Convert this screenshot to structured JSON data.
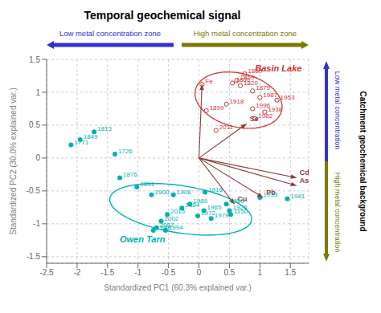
{
  "chart_data": {
    "type": "scatter",
    "title": "Temporal geochemical signal",
    "x_label": "Standardized PC1 (60.3% explained var.)",
    "y_label": "Standardized PC2 (30.0% explained var.)",
    "xlim": [
      -2.5,
      1.8
    ],
    "ylim": [
      -1.6,
      1.5
    ],
    "xticks": [
      -2.5,
      -2,
      -1.5,
      -1,
      -0.5,
      0,
      0.5,
      1,
      1.5
    ],
    "yticks": [
      -1.5,
      -1,
      -0.5,
      0,
      0.5,
      1,
      1.5
    ],
    "grid": true,
    "series": [
      {
        "color": "#cc3333",
        "marker": "open_circle",
        "x": [
          0.05,
          0.75,
          0.62,
          0.55,
          0.68,
          0.88,
          0.12,
          0.45,
          1.0,
          1.28,
          0.88,
          1.08,
          0.92,
          0.28
        ],
        "values": [
          1.12,
          1.28,
          1.18,
          1.14,
          1.1,
          1.02,
          0.72,
          0.82,
          0.92,
          0.88,
          0.75,
          0.7,
          0.6,
          0.42
        ],
        "labels": [
          "Fe",
          "1839",
          "1859",
          "1800",
          "1820",
          "1879",
          "1899",
          "1918",
          "1987",
          "1953",
          "1996",
          "1938",
          "1982",
          "2011"
        ]
      },
      {
        "color": "#00b0b0",
        "marker": "circle",
        "x": [
          -2.1,
          -1.95,
          -1.72,
          -1.38,
          -1.3,
          -1.02,
          -0.78,
          -0.42,
          0.1,
          -0.15,
          -0.28,
          0.08,
          -0.02,
          0.2,
          -0.52,
          -0.62,
          -0.7,
          -0.75,
          -0.55,
          0.45,
          0.5,
          0.52,
          1.0,
          1.45
        ],
        "values": [
          0.2,
          0.28,
          0.4,
          0.06,
          -0.3,
          -0.44,
          -0.56,
          -0.56,
          -0.52,
          -0.7,
          -0.76,
          -0.8,
          -0.88,
          -0.92,
          -0.86,
          -0.96,
          -1.06,
          -1.1,
          -1.1,
          -0.7,
          -0.8,
          -0.86,
          -0.6,
          -0.62
        ],
        "labels": [
          "1771",
          "1849",
          "1813",
          "1726",
          "1876",
          "1891",
          "1900",
          "1908",
          "1916",
          "1989",
          "1984",
          "1965",
          "1972",
          "1979",
          "2015",
          "2002",
          "2007",
          "1998",
          "1994",
          "1959",
          "1926",
          "1150",
          "1933",
          "1941"
        ]
      }
    ],
    "arrows": {
      "color": "#8b3a3a",
      "origin": [
        0.0,
        0.0
      ],
      "x": [
        1.6,
        1.6,
        0.78,
        1.05,
        0.58,
        0.05
      ],
      "values": [
        -0.3,
        -0.42,
        0.52,
        -0.6,
        -0.7,
        1.12
      ],
      "labels": [
        "Cd",
        "As",
        "Se",
        "Pb",
        "Cu",
        null
      ]
    },
    "ellipses": [
      {
        "color": "#cc4444",
        "center_x": 0.65,
        "center_y": 0.88,
        "width": 1.45,
        "height": 0.82,
        "angle": -12
      },
      {
        "color": "#00b0b0",
        "center_x": -0.3,
        "center_y": -0.78,
        "width": 2.35,
        "height": 0.72,
        "angle": -8
      }
    ],
    "annotations": [
      {
        "text": "Basin Lake",
        "x": 0.92,
        "y": 1.32,
        "color": "#cc3333"
      },
      {
        "text": "Owen Tarn",
        "x": -1.3,
        "y": -1.28,
        "color": "#00b0b0"
      }
    ],
    "zone_labels": {
      "low": "Low metal concentration zone",
      "high": "High metal concentration zone",
      "low_side": "Low metal concentration",
      "high_side": "High metal concentration",
      "low_color": "#3333cc",
      "high_color": "#7a7a00"
    },
    "side_title": "Catchment geochemical background"
  }
}
